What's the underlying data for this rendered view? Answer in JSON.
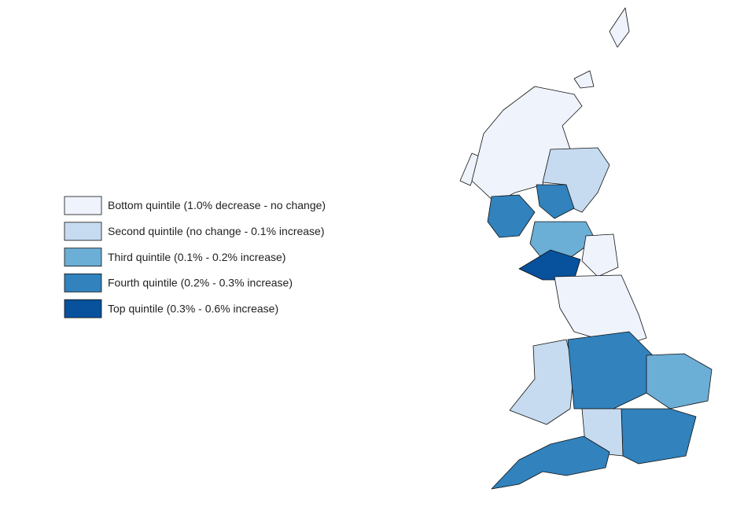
{
  "legend": [
    {
      "label": "Bottom quintile (1.0% decrease - no change)",
      "color": "#eef3fc"
    },
    {
      "label": "Second quintile (no change - 0.1% increase)",
      "color": "#c6dbef"
    },
    {
      "label": "Third quintile (0.1% - 0.2% increase)",
      "color": "#6baed6"
    },
    {
      "label": "Fourth quintile (0.2% - 0.3% increase)",
      "color": "#3182bd"
    },
    {
      "label": "Top quintile (0.3% - 0.6% increase)",
      "color": "#08519c"
    }
  ]
}
